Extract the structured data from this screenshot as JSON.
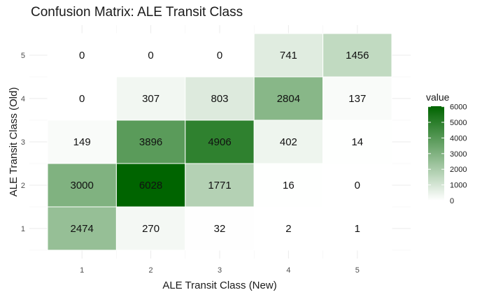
{
  "chart_data": {
    "type": "heatmap",
    "title": "Confusion Matrix: ALE Transit Class",
    "xlabel": "ALE Transit Class (New)",
    "ylabel": "ALE Transit Class (Old)",
    "x_categories": [
      "1",
      "2",
      "3",
      "4",
      "5"
    ],
    "y_categories": [
      "1",
      "2",
      "3",
      "4",
      "5"
    ],
    "matrix": [
      [
        2474,
        270,
        32,
        2,
        1
      ],
      [
        3000,
        6028,
        1771,
        16,
        0
      ],
      [
        149,
        3896,
        4906,
        402,
        14
      ],
      [
        0,
        307,
        803,
        2804,
        137
      ],
      [
        0,
        0,
        0,
        741,
        1456
      ]
    ],
    "legend": {
      "title": "value",
      "ticks": [
        0,
        1000,
        2000,
        3000,
        4000,
        5000,
        6000
      ],
      "tick_labels": [
        "0",
        "1000",
        "2000",
        "3000",
        "4000",
        "5000",
        "6000"
      ],
      "range": [
        0,
        6028
      ],
      "placement": "right"
    },
    "color_low": "#ffffff",
    "color_high": "#006400",
    "grid": true
  }
}
